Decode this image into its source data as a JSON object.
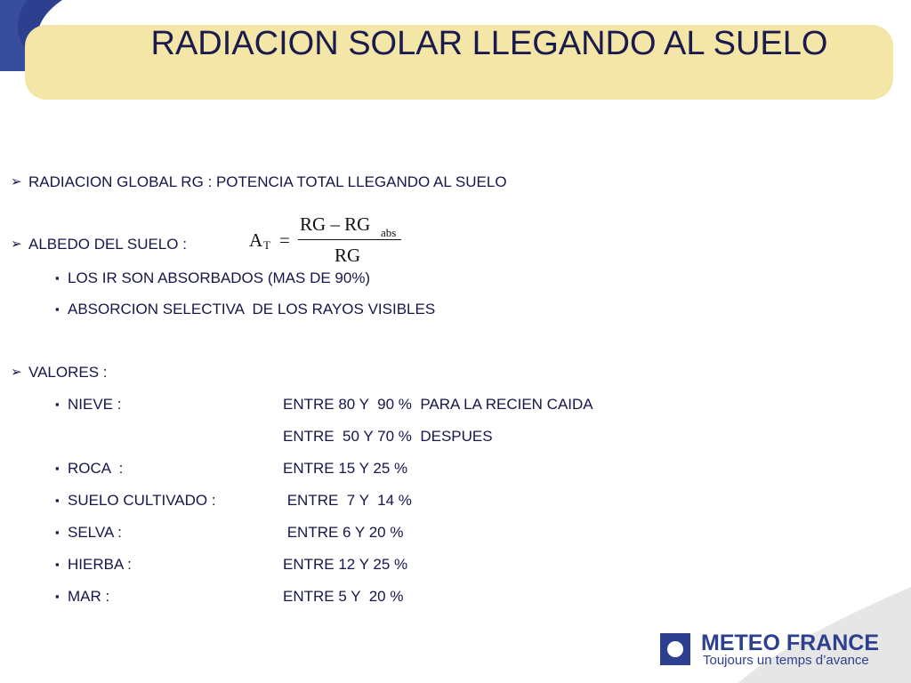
{
  "title": "RADIACION SOLAR LLEGANDO AL SUELO",
  "bullets": [
    {
      "text": "RADIACION GLOBAL RG : POTENCIA TOTAL LLEGANDO AL SUELO"
    },
    {
      "text": "ALBEDO DEL SUELO :",
      "formula": {
        "lhs": "A",
        "lhs_sub": "T",
        "equals": "=",
        "numerator": "RG – RG",
        "numerator_sub": "abs",
        "denominator": "RG"
      },
      "items": [
        "LOS IR SON ABSORBADOS (MAS DE 90%)",
        "ABSORCION SELECTIVA  DE LOS RAYOS VISIBLES"
      ]
    },
    {
      "text": "VALORES :",
      "rows": [
        {
          "label": "NIEVE :",
          "value": "ENTRE 80 Y  90 %  PARA LA RECIEN CAIDA"
        },
        {
          "label": null,
          "value": "ENTRE  50 Y 70 %  DESPUES"
        },
        {
          "label": "ROCA  :",
          "value": "ENTRE 15 Y 25 %"
        },
        {
          "label": "SUELO CULTIVADO :",
          "value": " ENTRE  7 Y  14 %"
        },
        {
          "label": "SELVA :",
          "value": " ENTRE 6 Y 20 %"
        },
        {
          "label": "HIERBA :",
          "value": "ENTRE 12 Y 25 %"
        },
        {
          "label": "MAR :",
          "value": "ENTRE 5 Y  20 %"
        }
      ]
    }
  ],
  "logo": {
    "name": "METEO FRANCE",
    "tagline": "Toujours un temps d’avance"
  }
}
